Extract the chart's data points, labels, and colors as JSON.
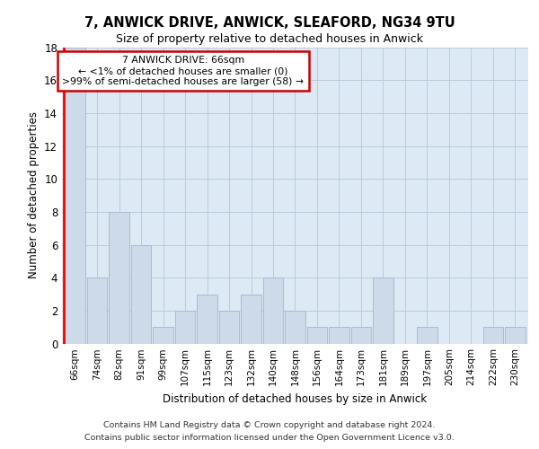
{
  "title1": "7, ANWICK DRIVE, ANWICK, SLEAFORD, NG34 9TU",
  "title2": "Size of property relative to detached houses in Anwick",
  "xlabel": "Distribution of detached houses by size in Anwick",
  "ylabel": "Number of detached properties",
  "categories": [
    "66sqm",
    "74sqm",
    "82sqm",
    "91sqm",
    "99sqm",
    "107sqm",
    "115sqm",
    "123sqm",
    "132sqm",
    "140sqm",
    "148sqm",
    "156sqm",
    "164sqm",
    "173sqm",
    "181sqm",
    "189sqm",
    "197sqm",
    "205sqm",
    "214sqm",
    "222sqm",
    "230sqm"
  ],
  "values": [
    18,
    4,
    8,
    6,
    1,
    2,
    3,
    2,
    3,
    4,
    2,
    1,
    1,
    1,
    4,
    0,
    1,
    0,
    0,
    1,
    1
  ],
  "bar_color": "#ccdaea",
  "bar_edge_color": "#aabcce",
  "annotation_text": "7 ANWICK DRIVE: 66sqm\n← <1% of detached houses are smaller (0)\n>99% of semi-detached houses are larger (58) →",
  "annotation_box_color": "#ffffff",
  "annotation_box_edge": "#cc0000",
  "ylim": [
    0,
    18
  ],
  "yticks": [
    0,
    2,
    4,
    6,
    8,
    10,
    12,
    14,
    16,
    18
  ],
  "footer1": "Contains HM Land Registry data © Crown copyright and database right 2024.",
  "footer2": "Contains public sector information licensed under the Open Government Licence v3.0.",
  "plot_bg_color": "#ddeaf5",
  "grid_color": "#b8ccdd"
}
